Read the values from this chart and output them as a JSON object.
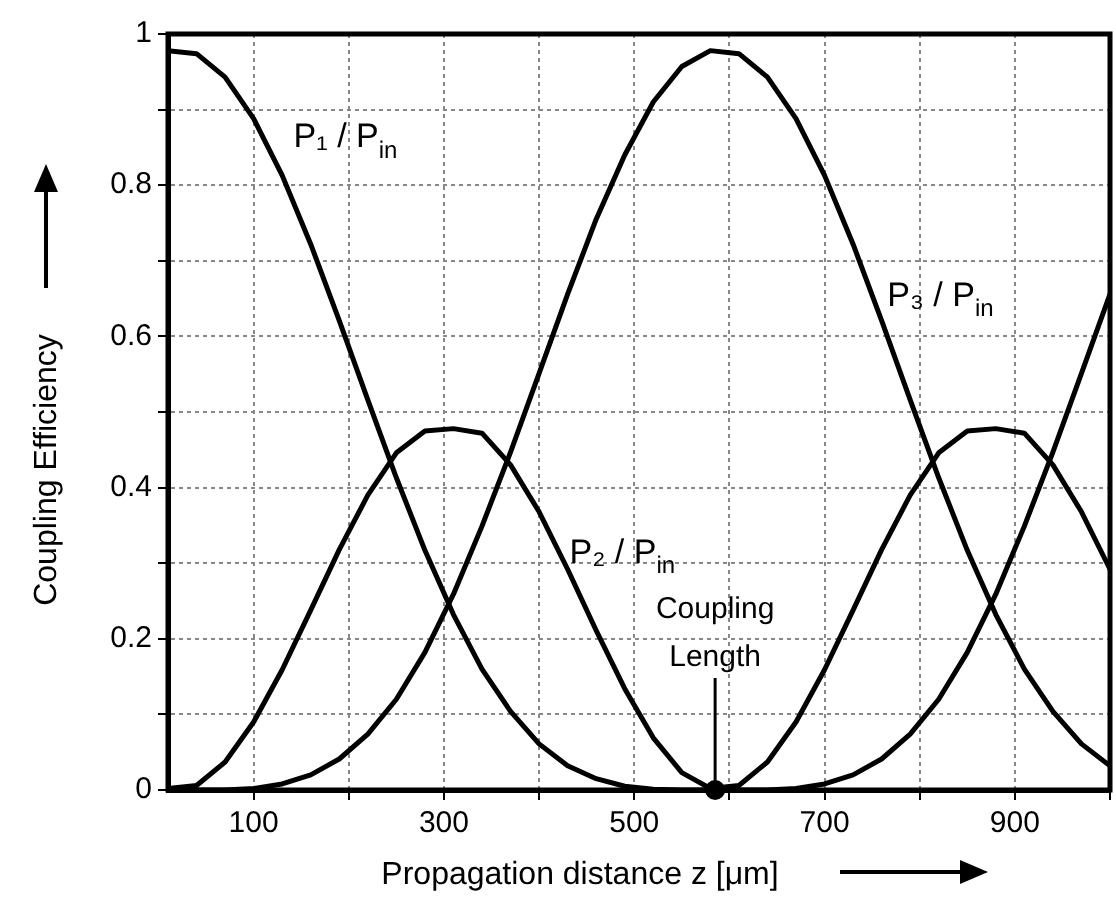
{
  "chart_data": {
    "type": "line",
    "xlabel": "Propagation distance z [μm]",
    "ylabel": "Coupling Efficiency",
    "x": [
      10,
      40,
      70,
      100,
      130,
      160,
      190,
      220,
      250,
      280,
      310,
      340,
      370,
      400,
      430,
      460,
      490,
      520,
      550,
      580,
      610,
      640,
      670,
      700,
      730,
      760,
      790,
      820,
      850,
      880,
      910,
      940,
      970,
      1000
    ],
    "series": [
      {
        "name": "P₁ / P$_{in}$",
        "color": "#000000",
        "values": [
          0.978,
          0.974,
          0.943,
          0.888,
          0.813,
          0.722,
          0.621,
          0.516,
          0.413,
          0.317,
          0.232,
          0.16,
          0.104,
          0.061,
          0.032,
          0.015,
          0.005,
          0.001,
          0,
          0,
          0,
          0,
          0.002,
          0.008,
          0.02,
          0.041,
          0.074,
          0.12,
          0.182,
          0.259,
          0.349,
          0.447,
          0.551,
          0.656
        ]
      },
      {
        "name": "P₂ / P$_{in}$",
        "color": "#000000",
        "values": [
          0.002,
          0.006,
          0.037,
          0.09,
          0.159,
          0.238,
          0.318,
          0.39,
          0.446,
          0.475,
          0.478,
          0.472,
          0.43,
          0.368,
          0.292,
          0.211,
          0.134,
          0.069,
          0.023,
          0.002,
          0.006,
          0.037,
          0.09,
          0.159,
          0.238,
          0.318,
          0.39,
          0.446,
          0.475,
          0.478,
          0.472,
          0.43,
          0.368,
          0.292
        ]
      },
      {
        "name": "P₃ / P$_{in}$",
        "color": "#000000",
        "values": [
          0,
          0,
          0,
          0.002,
          0.008,
          0.02,
          0.041,
          0.074,
          0.12,
          0.182,
          0.259,
          0.349,
          0.447,
          0.551,
          0.656,
          0.755,
          0.84,
          0.91,
          0.957,
          0.978,
          0.974,
          0.943,
          0.888,
          0.813,
          0.722,
          0.621,
          0.516,
          0.413,
          0.317,
          0.232,
          0.16,
          0.104,
          0.061,
          0.032
        ]
      }
    ],
    "annotations": [
      {
        "text": "Coupling Length",
        "x": 585,
        "y": 0
      }
    ],
    "xlim": [
      10,
      1000
    ],
    "xticks": [
      100,
      {
        "value": 200,
        "label": null
      },
      300,
      {
        "value": 400,
        "label": null
      },
      500,
      {
        "value": 600,
        "label": null
      },
      700,
      {
        "value": 800,
        "label": null
      },
      900,
      {
        "value": 1000,
        "label": null
      }
    ],
    "ylim": [
      0,
      1
    ],
    "yticks": [
      0,
      {
        "value": 0.1,
        "label": null
      },
      0.2,
      {
        "value": 0.3,
        "label": null
      },
      0.4,
      {
        "value": 0.5,
        "label": null
      },
      0.6,
      {
        "value": 0.7,
        "label": null
      },
      0.8,
      {
        "value": 0.9,
        "label": null
      },
      1
    ],
    "grid": true,
    "legend": false
  }
}
